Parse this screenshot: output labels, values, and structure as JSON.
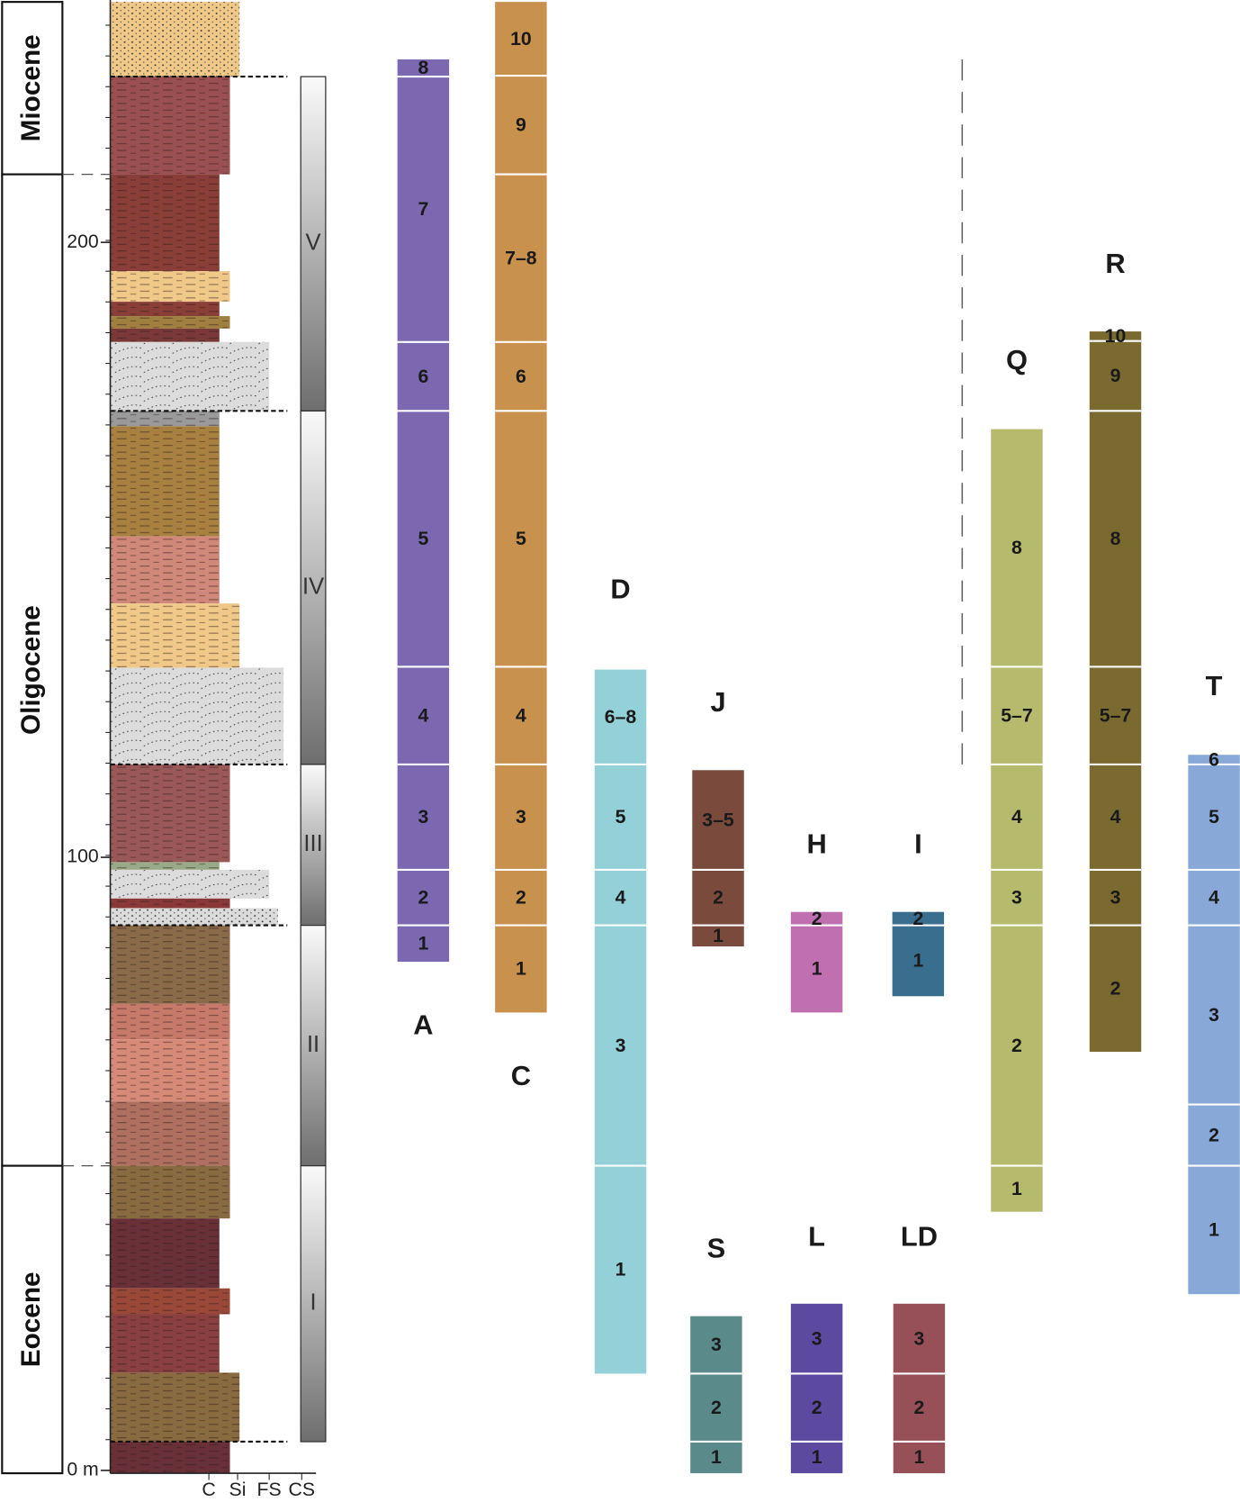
{
  "epochs": [
    "Miocene",
    "Oligocene",
    "Eocene"
  ],
  "depth_labels": [
    "200",
    "100",
    "0 m"
  ],
  "grain_size_labels": [
    "C",
    "Si",
    "FS",
    "CS"
  ],
  "units": [
    "V",
    "IV",
    "III",
    "II",
    "I"
  ],
  "columns": [
    {
      "name": "A",
      "segments": [
        "8",
        "7",
        "6",
        "5",
        "4",
        "3",
        "2",
        "1"
      ]
    },
    {
      "name": "C",
      "segments": [
        "10",
        "9",
        "7–8",
        "6",
        "5",
        "4",
        "3",
        "2",
        "1"
      ]
    },
    {
      "name": "D",
      "segments": [
        "6–8",
        "5",
        "4",
        "3",
        "1"
      ]
    },
    {
      "name": "J",
      "segments": [
        "3–5",
        "2",
        "1"
      ]
    },
    {
      "name": "H",
      "segments": [
        "2",
        "1"
      ]
    },
    {
      "name": "I",
      "segments": [
        "2",
        "1"
      ]
    },
    {
      "name": "Q",
      "segments": [
        "8",
        "5–7",
        "4",
        "3",
        "2",
        "1"
      ]
    },
    {
      "name": "R",
      "segments": [
        "10",
        "9",
        "8",
        "5–7",
        "4",
        "3",
        "2"
      ]
    },
    {
      "name": "T",
      "segments": [
        "6",
        "5",
        "4",
        "3",
        "2",
        "1"
      ]
    },
    {
      "name": "S",
      "segments": [
        "3",
        "2",
        "1"
      ]
    },
    {
      "name": "L",
      "segments": [
        "3",
        "2",
        "1"
      ]
    },
    {
      "name": "LD",
      "segments": [
        "3",
        "2",
        "1"
      ]
    }
  ]
}
